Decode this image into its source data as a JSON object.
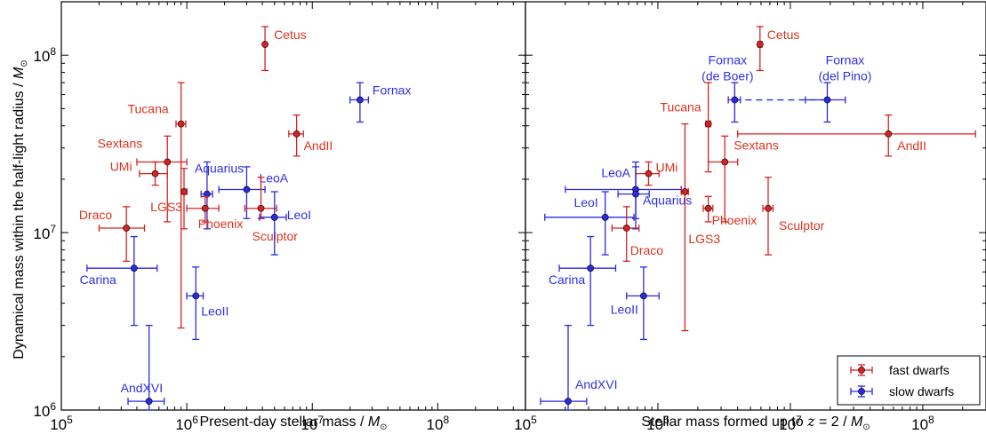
{
  "colors": {
    "fast": "#d62222",
    "slow": "#2a2ae0",
    "fast_label": "#d9341f",
    "slow_label": "#2f2fe6"
  },
  "legend": {
    "fast": "fast dwarfs",
    "slow": "slow dwarfs",
    "placement": "lower right of right panel"
  },
  "ylabel": {
    "text": "Dynamical mass within the half-light radius / ",
    "unit": "M",
    "unit_sub": "⊙"
  },
  "chart_data": [
    {
      "type": "scatter",
      "panel": "left",
      "xlabel": {
        "text": "Present-day stellar mass  / ",
        "unit": "M",
        "unit_sub": "⊙"
      },
      "xscale": "log",
      "yscale": "log",
      "xlim": [
        100000,
        500000000
      ],
      "ylim": [
        1000000,
        200000000
      ],
      "x_ticks": [
        "10^5",
        "10^6",
        "10^7",
        "10^8"
      ],
      "y_ticks": [
        "10^6",
        "10^7",
        "10^8"
      ],
      "grid": false,
      "points": [
        {
          "name": "Cetus",
          "group": "fast",
          "x": 4200000,
          "xerr": [
            0,
            0
          ],
          "y": 115000000,
          "yerr": [
            82000000,
            145000000
          ]
        },
        {
          "name": "Fornax",
          "group": "slow",
          "x": 24000000,
          "xerr": [
            20000000,
            28000000
          ],
          "y": 56000000,
          "yerr": [
            42000000,
            70000000
          ]
        },
        {
          "name": "Tucana",
          "group": "fast",
          "x": 900000,
          "xerr": [
            820000,
            980000
          ],
          "y": 41000000,
          "yerr": [
            2900000,
            70000000
          ]
        },
        {
          "name": "AndII",
          "group": "fast",
          "x": 7500000,
          "xerr": [
            6500000,
            8500000
          ],
          "y": 36000000,
          "yerr": [
            27000000,
            46000000
          ]
        },
        {
          "name": "Sextans",
          "group": "fast",
          "x": 700000,
          "xerr": [
            400000,
            1000000
          ],
          "y": 25000000,
          "yerr": [
            11500000,
            35000000
          ]
        },
        {
          "name": "UMi",
          "group": "fast",
          "x": 560000,
          "xerr": [
            420000,
            700000
          ],
          "y": 21500000,
          "yerr": [
            18500000,
            25000000
          ]
        },
        {
          "name": "Aquarius",
          "group": "slow",
          "x": 1450000,
          "xerr": [
            1300000,
            1600000
          ],
          "y": 16500000,
          "yerr": [
            10500000,
            25000000
          ]
        },
        {
          "name": "LGS3",
          "group": "fast",
          "x": 950000,
          "xerr": [
            900000,
            1000000
          ],
          "y": 17000000,
          "yerr": [
            10500000,
            23000000
          ]
        },
        {
          "name": "LeoA",
          "group": "slow",
          "x": 3000000,
          "xerr": [
            1800000,
            4200000
          ],
          "y": 17500000,
          "yerr": [
            12000000,
            23500000
          ]
        },
        {
          "name": "Phoenix",
          "group": "fast",
          "x": 1400000,
          "xerr": [
            1000000,
            1800000
          ],
          "y": 13700000,
          "yerr": [
            11500000,
            16000000
          ]
        },
        {
          "name": "Sculptor",
          "group": "fast",
          "x": 3900000,
          "xerr": [
            2900000,
            5200000
          ],
          "y": 13700000,
          "yerr": [
            12000000,
            20500000
          ]
        },
        {
          "name": "LeoI",
          "group": "slow",
          "x": 5000000,
          "xerr": [
            3800000,
            6200000
          ],
          "y": 12200000,
          "yerr": [
            7500000,
            17000000
          ]
        },
        {
          "name": "Draco",
          "group": "fast",
          "x": 330000,
          "xerr": [
            200000,
            460000
          ],
          "y": 10600000,
          "yerr": [
            6900000,
            14000000
          ]
        },
        {
          "name": "Carina",
          "group": "slow",
          "x": 380000,
          "xerr": [
            160000,
            580000
          ],
          "y": 6300000,
          "yerr": [
            3000000,
            9500000
          ]
        },
        {
          "name": "LeoII",
          "group": "slow",
          "x": 1180000,
          "xerr": [
            1000000,
            1350000
          ],
          "y": 4400000,
          "yerr": [
            2500000,
            6400000
          ]
        },
        {
          "name": "AndXVI",
          "group": "slow",
          "x": 500000,
          "xerr": [
            340000,
            660000
          ],
          "y": 1120000,
          "yerr": [
            1000000,
            3000000
          ]
        }
      ]
    },
    {
      "type": "scatter",
      "panel": "right",
      "xlabel": {
        "text": "Stellar mass formed up to ",
        "italic": "z",
        "rest": " = 2 / ",
        "unit": "M",
        "unit_sub": "⊙"
      },
      "xscale": "log",
      "yscale": "log",
      "xlim": [
        100000,
        300000000
      ],
      "ylim": [
        1000000,
        200000000
      ],
      "x_ticks": [
        "10^5",
        "10^6",
        "10^7",
        "10^8"
      ],
      "y_ticks": [
        "10^6",
        "10^7",
        "10^8"
      ],
      "grid": false,
      "connector": {
        "from": "Fornax (de Boer)",
        "to": "Fornax (del Pino)",
        "style": "dashed"
      },
      "points": [
        {
          "name": "Cetus",
          "group": "fast",
          "x": 5900000,
          "xerr": [
            5700000,
            6100000
          ],
          "y": 115000000,
          "yerr": [
            82000000,
            145000000
          ]
        },
        {
          "name": "Fornax (de Boer)",
          "group": "slow",
          "x": 3800000,
          "xerr": [
            3400000,
            4200000
          ],
          "y": 56000000,
          "yerr": [
            42000000,
            70000000
          ]
        },
        {
          "name": "Fornax (del Pino)",
          "group": "slow",
          "x": 19000000,
          "xerr": [
            13000000,
            26000000
          ],
          "y": 56000000,
          "yerr": [
            42000000,
            70000000
          ]
        },
        {
          "name": "Tucana",
          "group": "fast",
          "x": 2400000,
          "xerr": [
            2300000,
            2500000
          ],
          "y": 41000000,
          "yerr": [
            22000000,
            70000000
          ]
        },
        {
          "name": "AndII",
          "group": "fast",
          "x": 55000000,
          "xerr": [
            4000000,
            250000000
          ],
          "y": 36000000,
          "yerr": [
            27000000,
            46000000
          ]
        },
        {
          "name": "Sextans",
          "group": "fast",
          "x": 3200000,
          "xerr": [
            2400000,
            4000000
          ],
          "y": 25000000,
          "yerr": [
            11500000,
            35000000
          ]
        },
        {
          "name": "UMi",
          "group": "fast",
          "x": 850000,
          "xerr": [
            680000,
            1020000
          ],
          "y": 21500000,
          "yerr": [
            18500000,
            25000000
          ]
        },
        {
          "name": "LeoA",
          "group": "slow",
          "x": 680000,
          "xerr": [
            200000,
            1500000
          ],
          "y": 17500000,
          "yerr": [
            12000000,
            23500000
          ]
        },
        {
          "name": "Aquarius",
          "group": "slow",
          "x": 680000,
          "xerr": [
            500000,
            860000
          ],
          "y": 16500000,
          "yerr": [
            10500000,
            25000000
          ]
        },
        {
          "name": "LGS3",
          "group": "fast",
          "x": 1600000,
          "xerr": [
            1500000,
            1700000
          ],
          "y": 17000000,
          "yerr": [
            2800000,
            41000000
          ]
        },
        {
          "name": "Phoenix",
          "group": "fast",
          "x": 2400000,
          "xerr": [
            2200000,
            2600000
          ],
          "y": 13700000,
          "yerr": [
            11500000,
            16000000
          ]
        },
        {
          "name": "Sculptor",
          "group": "fast",
          "x": 6800000,
          "xerr": [
            6200000,
            7400000
          ],
          "y": 13700000,
          "yerr": [
            7500000,
            20500000
          ]
        },
        {
          "name": "LeoI",
          "group": "slow",
          "x": 400000,
          "xerr": [
            140000,
            660000
          ],
          "y": 12200000,
          "yerr": [
            7500000,
            17000000
          ]
        },
        {
          "name": "Draco",
          "group": "fast",
          "x": 580000,
          "xerr": [
            450000,
            720000
          ],
          "y": 10600000,
          "yerr": [
            6900000,
            14000000
          ]
        },
        {
          "name": "Carina",
          "group": "slow",
          "x": 310000,
          "xerr": [
            180000,
            480000
          ],
          "y": 6300000,
          "yerr": [
            3000000,
            9500000
          ]
        },
        {
          "name": "LeoII",
          "group": "slow",
          "x": 780000,
          "xerr": [
            580000,
            1020000
          ],
          "y": 4400000,
          "yerr": [
            2500000,
            6400000
          ]
        },
        {
          "name": "AndXVI",
          "group": "slow",
          "x": 210000,
          "xerr": [
            130000,
            290000
          ],
          "y": 1120000,
          "yerr": [
            1000000,
            3000000
          ]
        }
      ]
    }
  ]
}
